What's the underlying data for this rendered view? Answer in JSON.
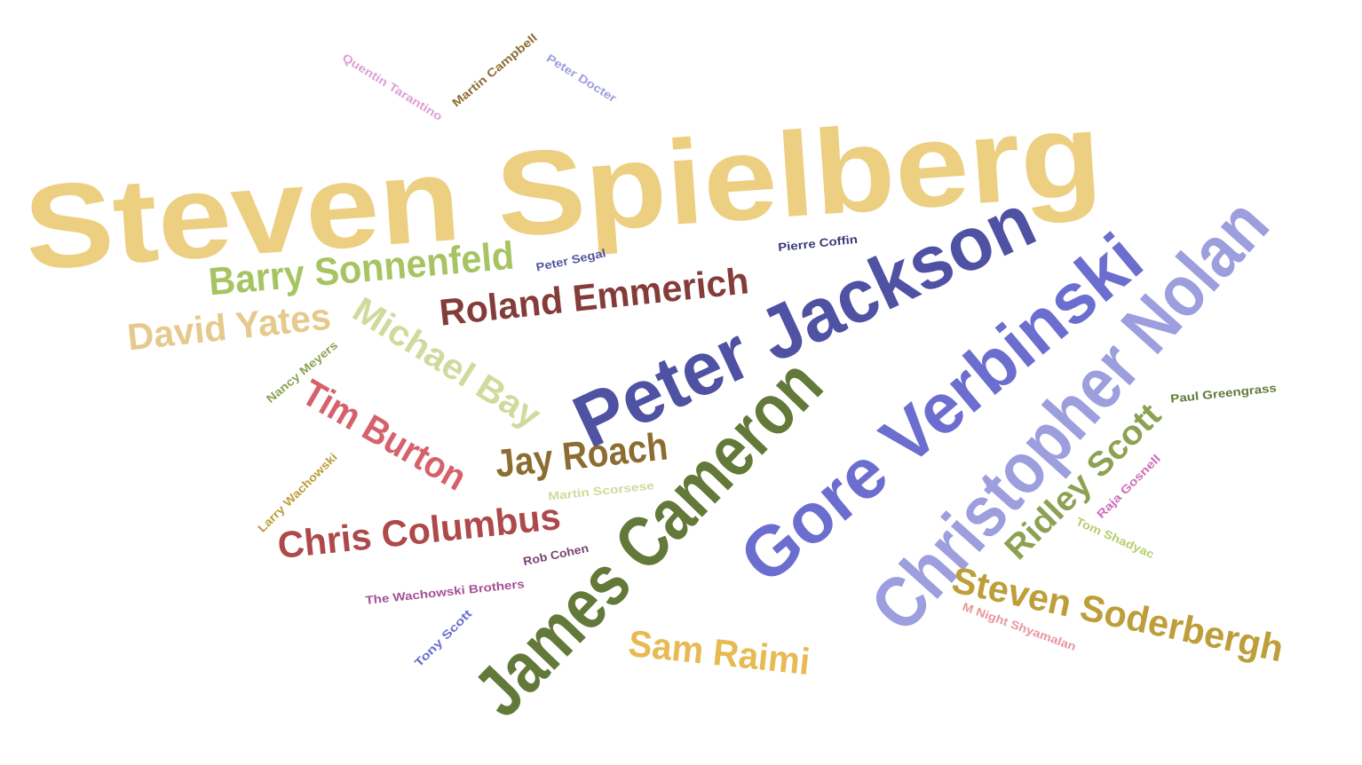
{
  "word_cloud": {
    "words": [
      {
        "text": "Steven Spielberg",
        "color": "#edcf82"
      },
      {
        "text": "Peter Jackson",
        "color": "#4f51a3"
      },
      {
        "text": "Gore Verbinski",
        "color": "#6b6ecf"
      },
      {
        "text": "Christopher Nolan",
        "color": "#9c9ede"
      },
      {
        "text": "James Cameron",
        "color": "#637939"
      },
      {
        "text": "Barry Sonnenfeld",
        "color": "#a6c462"
      },
      {
        "text": "David Yates",
        "color": "#e6c98d"
      },
      {
        "text": "Michael Bay",
        "color": "#cedb9c"
      },
      {
        "text": "Roland Emmerich",
        "color": "#843c39"
      },
      {
        "text": "Tim Burton",
        "color": "#d6616b"
      },
      {
        "text": "Jay Roach",
        "color": "#8c6d31"
      },
      {
        "text": "Chris Columbus",
        "color": "#ad494a"
      },
      {
        "text": "Sam Raimi",
        "color": "#e7ba52"
      },
      {
        "text": "Steven Soderbergh",
        "color": "#bd9e39"
      },
      {
        "text": "Ridley Scott",
        "color": "#8ca252"
      },
      {
        "text": "Quentin Tarantino",
        "color": "#de9ed6"
      },
      {
        "text": "Martin Campbell",
        "color": "#8c6d31"
      },
      {
        "text": "Peter Docter",
        "color": "#9c9ede"
      },
      {
        "text": "Pierre Coffin",
        "color": "#393b79"
      },
      {
        "text": "Peter Segal",
        "color": "#5254a3"
      },
      {
        "text": "Nancy Meyers",
        "color": "#8ca252"
      },
      {
        "text": "Larry Wachowski",
        "color": "#bd9e39"
      },
      {
        "text": "Martin Scorsese",
        "color": "#cedb9c"
      },
      {
        "text": "Rob Cohen",
        "color": "#7b4173"
      },
      {
        "text": "The Wachowski Brothers",
        "color": "#a55194"
      },
      {
        "text": "Tony Scott",
        "color": "#6b6ecf"
      },
      {
        "text": "Paul Greengrass",
        "color": "#637939"
      },
      {
        "text": "Raja Gosnell",
        "color": "#ce6dbd"
      },
      {
        "text": "Tom Shadyac",
        "color": "#b5cf6b"
      },
      {
        "text": "M Night Shyamalan",
        "color": "#e7969c"
      }
    ]
  }
}
